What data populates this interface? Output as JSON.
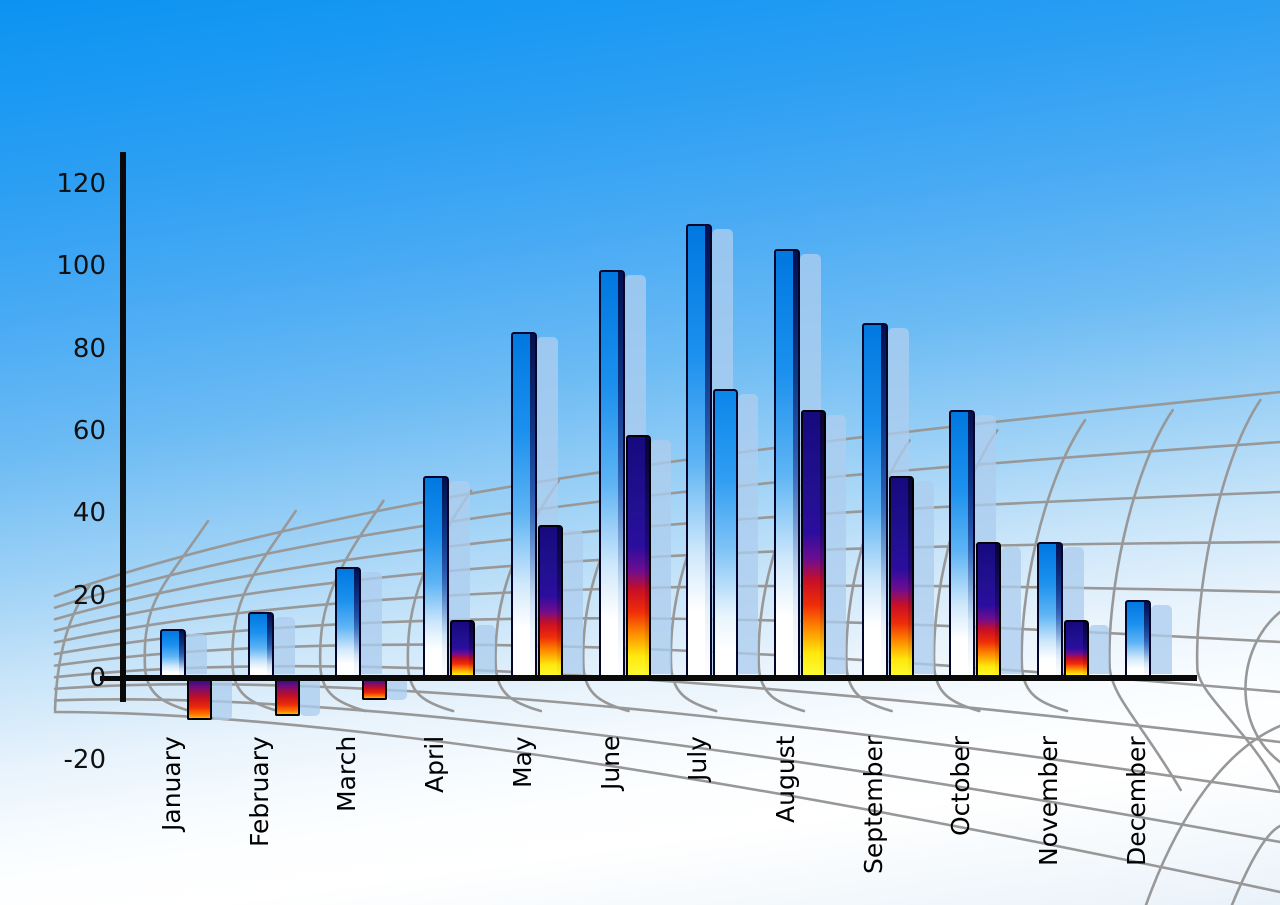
{
  "chart_data": {
    "type": "bar",
    "title": "",
    "xlabel": "",
    "ylabel": "",
    "categories": [
      "January",
      "February",
      "March",
      "April",
      "May",
      "June",
      "July",
      "August",
      "September",
      "October",
      "November",
      "December"
    ],
    "series": [
      {
        "name": "primary-blue-bars",
        "values": [
          12,
          16,
          27,
          49,
          84,
          99,
          110,
          104,
          86,
          65,
          33,
          19
        ]
      },
      {
        "name": "secondary-bars",
        "values": [
          -10,
          -9,
          -5,
          14,
          37,
          59,
          70,
          65,
          49,
          33,
          14,
          null
        ],
        "styles": [
          "flame",
          "flame",
          "flame",
          "flame",
          "flame",
          "flame",
          "blue",
          "flame",
          "flame",
          "flame",
          "flame",
          null
        ]
      }
    ],
    "ylim": [
      -20,
      120
    ],
    "yticks": [
      120,
      100,
      80,
      60,
      40,
      20,
      0,
      -20
    ],
    "grid": "curved-perspective-mesh",
    "legend_position": "none",
    "x_label_orientation": "rotated-90-bottom-to-top"
  },
  "colors": {
    "sky_top": "#0b93f2",
    "sky_bottom": "#e9f1f9",
    "mesh_gray": "#989898",
    "axis_black": "#0a0a0a",
    "bar_blue_top": "#0078e0",
    "bar_blue_bottom": "#ffffff",
    "echo_blue": "rgba(173,205,238,0.78)",
    "flame_navy": "#160a7e",
    "flame_red": "#d8101a",
    "flame_orange": "#ff8d00",
    "flame_yellow": "#ffe80c"
  }
}
